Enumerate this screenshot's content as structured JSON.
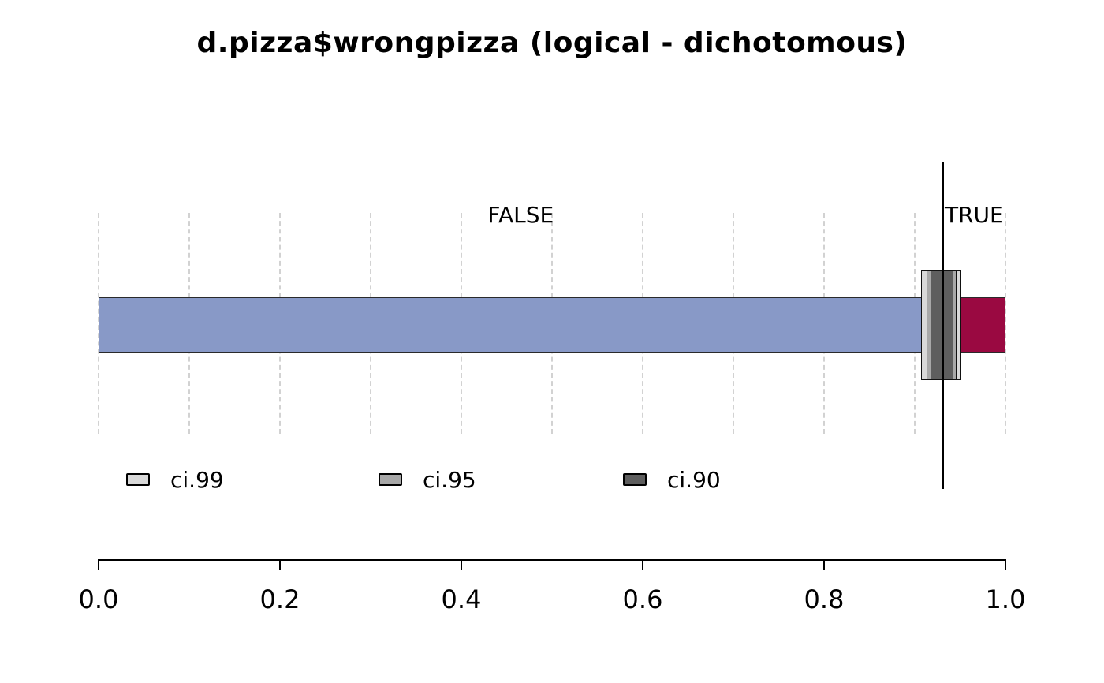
{
  "title": "d.pizza$wrongpizza (logical - dichotomous)",
  "chart_data": {
    "type": "bar",
    "orientation": "horizontal-stacked",
    "title": "d.pizza$wrongpizza (logical - dichotomous)",
    "categories": [
      "FALSE",
      "TRUE"
    ],
    "values": [
      0.931,
      0.069
    ],
    "point_estimate": 0.931,
    "confidence_intervals": [
      {
        "name": "ci.99",
        "low": 0.907,
        "high": 0.951,
        "color": "#d9d9d9"
      },
      {
        "name": "ci.95",
        "low": 0.913,
        "high": 0.946,
        "color": "#a8a8a8"
      },
      {
        "name": "ci.90",
        "low": 0.917,
        "high": 0.943,
        "color": "#5e5e5e"
      }
    ],
    "colors": {
      "FALSE": "#8899c7",
      "TRUE": "#9a0941"
    },
    "xlim": [
      0,
      1
    ],
    "gridline_step": 0.1,
    "grid": true,
    "x_ticks": [
      0.0,
      0.2,
      0.4,
      0.6,
      0.8,
      1.0
    ],
    "x_tick_labels": [
      "0.0",
      "0.2",
      "0.4",
      "0.6",
      "0.8",
      "1.0"
    ],
    "legend_position": "bottom-left"
  }
}
